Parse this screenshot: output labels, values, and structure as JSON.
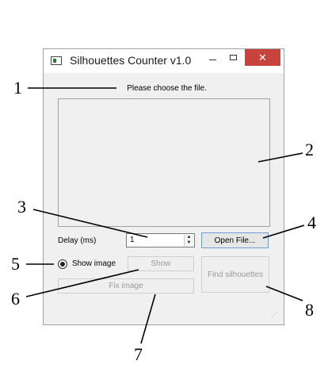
{
  "window": {
    "title": "Silhouettes Counter v1.0",
    "close_glyph": "✕"
  },
  "main": {
    "status_text": "Please choose the file.",
    "delay_label": "Delay (ms)",
    "delay_value": "1",
    "open_file_label": "Open File...",
    "show_image_label": "Show image",
    "show_label": "Show",
    "fix_image_label": "Fix image",
    "find_silhouettes_label": "Find silhouettes",
    "resize_grip": "⋰"
  },
  "callouts": [
    "1",
    "2",
    "3",
    "4",
    "5",
    "6",
    "7",
    "8"
  ],
  "colors": {
    "close_button": "#c7443d",
    "window_bg": "#f0f0f0"
  }
}
